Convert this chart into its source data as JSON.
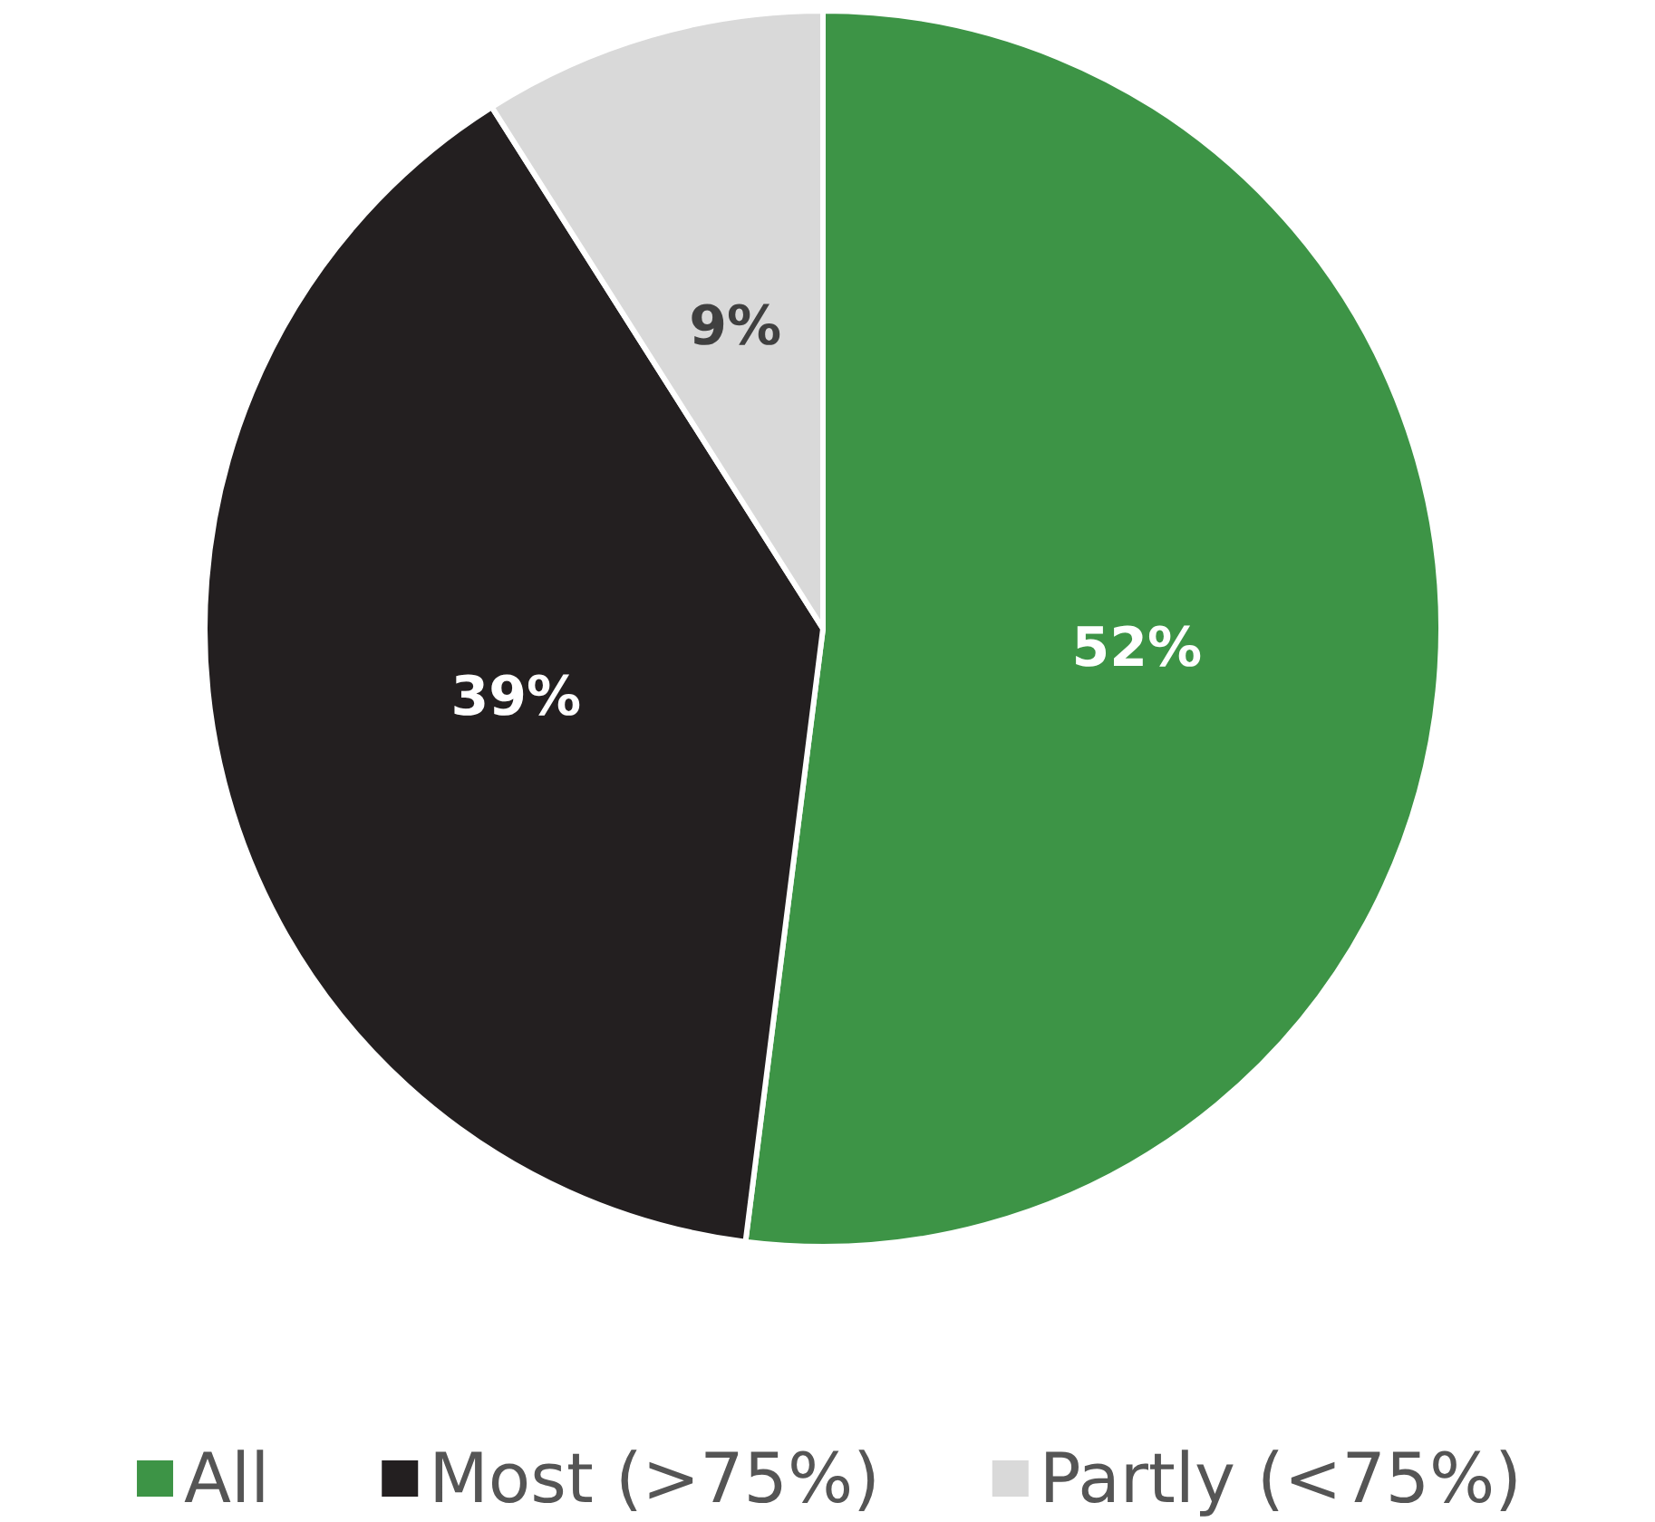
{
  "chart_data": {
    "type": "pie",
    "categories": [
      "All",
      "Most (>75%)",
      "Partly (<75%)"
    ],
    "values": [
      52,
      39,
      9
    ],
    "colors": [
      "#3d9446",
      "#231f20",
      "#d9d9d9"
    ],
    "value_labels": [
      "52%",
      "39%",
      "9%"
    ],
    "legend": "bottom"
  }
}
